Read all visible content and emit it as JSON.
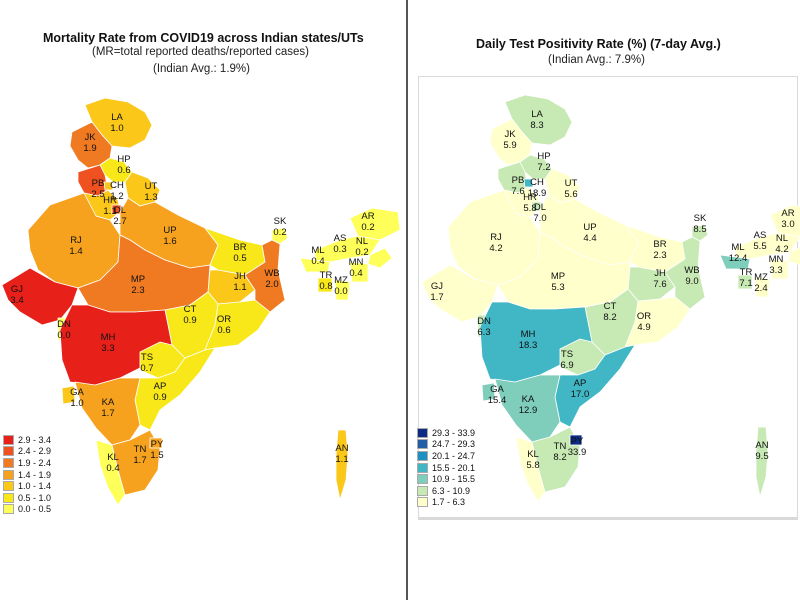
{
  "left": {
    "title": "Mortality Rate from COVID19 across Indian states/UTs",
    "subtitle": "(MR=total reported deaths/reported cases)",
    "avg": "(Indian Avg.: 1.9%)",
    "legend": [
      {
        "label": "2.9 - 3.4",
        "color": "#e8201a"
      },
      {
        "label": "2.4 - 2.9",
        "color": "#ef5220"
      },
      {
        "label": "1.9 - 2.4",
        "color": "#f07a22"
      },
      {
        "label": "1.4 - 1.9",
        "color": "#f6a21e"
      },
      {
        "label": "1.0 - 1.4",
        "color": "#fbc81a"
      },
      {
        "label": "0.5 - 1.0",
        "color": "#f8e81a"
      },
      {
        "label": "0.0 - 0.5",
        "color": "#ffff5a"
      }
    ],
    "states": [
      {
        "abbr": "LA",
        "value": "1.0"
      },
      {
        "abbr": "JK",
        "value": "1.9"
      },
      {
        "abbr": "HP",
        "value": "0.6"
      },
      {
        "abbr": "PB",
        "value": "2.5"
      },
      {
        "abbr": "CH",
        "value": "1.2"
      },
      {
        "abbr": "UT",
        "value": "1.3"
      },
      {
        "abbr": "HR",
        "value": "1.1"
      },
      {
        "abbr": "DL",
        "value": "2.7"
      },
      {
        "abbr": "RJ",
        "value": "1.4"
      },
      {
        "abbr": "UP",
        "value": "1.6"
      },
      {
        "abbr": "SK",
        "value": "0.2"
      },
      {
        "abbr": "AR",
        "value": "0.2"
      },
      {
        "abbr": "AS",
        "value": "0.3"
      },
      {
        "abbr": "NL",
        "value": "0.2"
      },
      {
        "abbr": "ML",
        "value": "0.4"
      },
      {
        "abbr": "MN",
        "value": "0.4"
      },
      {
        "abbr": "TR",
        "value": "0.8"
      },
      {
        "abbr": "MZ",
        "value": "0.0"
      },
      {
        "abbr": "BR",
        "value": "0.5"
      },
      {
        "abbr": "JH",
        "value": "1.1"
      },
      {
        "abbr": "WB",
        "value": "2.0"
      },
      {
        "abbr": "GJ",
        "value": "3.4"
      },
      {
        "abbr": "MP",
        "value": "2.3"
      },
      {
        "abbr": "CT",
        "value": "0.9"
      },
      {
        "abbr": "OR",
        "value": "0.6"
      },
      {
        "abbr": "DN",
        "value": "0.0"
      },
      {
        "abbr": "MH",
        "value": "3.3"
      },
      {
        "abbr": "TS",
        "value": "0.7"
      },
      {
        "abbr": "AP",
        "value": "0.9"
      },
      {
        "abbr": "GA",
        "value": "1.0"
      },
      {
        "abbr": "KA",
        "value": "1.7"
      },
      {
        "abbr": "KL",
        "value": "0.4"
      },
      {
        "abbr": "TN",
        "value": "1.7"
      },
      {
        "abbr": "PY",
        "value": "1.5"
      },
      {
        "abbr": "AN",
        "value": "1.1"
      }
    ]
  },
  "right": {
    "title": "Daily Test Positivity Rate (%) (7-day Avg.)",
    "avg": "(Indian Avg.: 7.9%)",
    "legend": [
      {
        "label": "29.3 - 33.9",
        "color": "#0c2c84"
      },
      {
        "label": "24.7 - 29.3",
        "color": "#225ea8"
      },
      {
        "label": "20.1 - 24.7",
        "color": "#1d91c0"
      },
      {
        "label": "15.5 - 20.1",
        "color": "#41b6c4"
      },
      {
        "label": "10.9 - 15.5",
        "color": "#7fcdbb"
      },
      {
        "label": "6.3 - 10.9",
        "color": "#c7e9b4"
      },
      {
        "label": "1.7 - 6.3",
        "color": "#ffffcc"
      }
    ],
    "states": [
      {
        "abbr": "LA",
        "value": "8.3"
      },
      {
        "abbr": "JK",
        "value": "5.9"
      },
      {
        "abbr": "HP",
        "value": "7.2"
      },
      {
        "abbr": "PB",
        "value": "7.6"
      },
      {
        "abbr": "CH",
        "value": "18.9"
      },
      {
        "abbr": "UT",
        "value": "5.6"
      },
      {
        "abbr": "HR",
        "value": "5.8"
      },
      {
        "abbr": "DL",
        "value": "7.0"
      },
      {
        "abbr": "RJ",
        "value": "4.2"
      },
      {
        "abbr": "UP",
        "value": "4.4"
      },
      {
        "abbr": "SK",
        "value": "8.5"
      },
      {
        "abbr": "AR",
        "value": "3.0"
      },
      {
        "abbr": "AS",
        "value": "5.5"
      },
      {
        "abbr": "NL",
        "value": "4.2"
      },
      {
        "abbr": "ML",
        "value": "12.4"
      },
      {
        "abbr": "MN",
        "value": "3.3"
      },
      {
        "abbr": "TR",
        "value": "7.1"
      },
      {
        "abbr": "MZ",
        "value": "2.4"
      },
      {
        "abbr": "BR",
        "value": "2.3"
      },
      {
        "abbr": "JH",
        "value": "7.6"
      },
      {
        "abbr": "WB",
        "value": "9.0"
      },
      {
        "abbr": "GJ",
        "value": "1.7"
      },
      {
        "abbr": "MP",
        "value": "5.3"
      },
      {
        "abbr": "CT",
        "value": "8.2"
      },
      {
        "abbr": "OR",
        "value": "4.9"
      },
      {
        "abbr": "DN",
        "value": "6.3"
      },
      {
        "abbr": "MH",
        "value": "18.3"
      },
      {
        "abbr": "TS",
        "value": "6.9"
      },
      {
        "abbr": "AP",
        "value": "17.0"
      },
      {
        "abbr": "GA",
        "value": "15.4"
      },
      {
        "abbr": "KA",
        "value": "12.9"
      },
      {
        "abbr": "KL",
        "value": "5.8"
      },
      {
        "abbr": "TN",
        "value": "8.2"
      },
      {
        "abbr": "PY",
        "value": "33.9"
      },
      {
        "abbr": "AN",
        "value": "9.5"
      }
    ]
  }
}
